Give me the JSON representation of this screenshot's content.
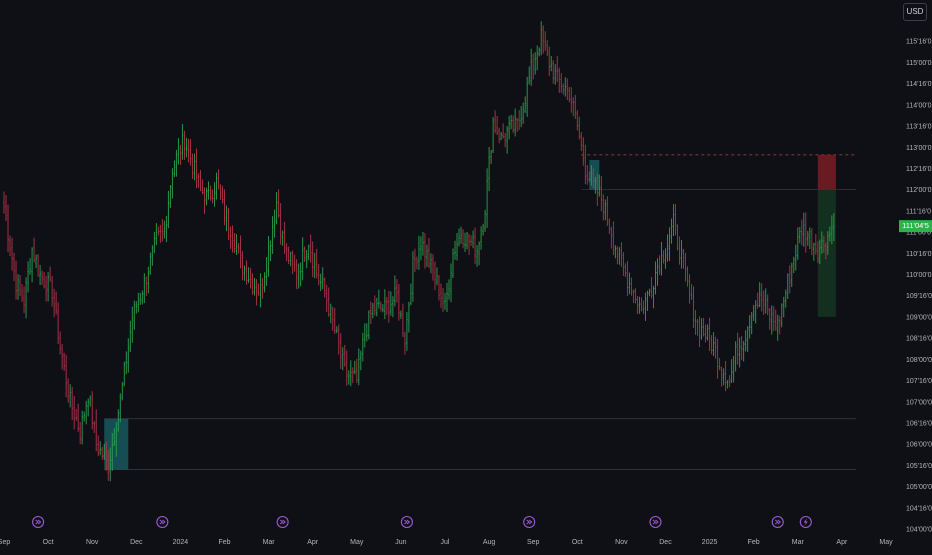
{
  "currency": "USD",
  "last_price_label": "111'04'5",
  "colors": {
    "background": "#0f1015",
    "up": "#26a69a",
    "up_wick": "#2aa34f",
    "down": "#ef5350",
    "down_wick": "#b2354a",
    "axis_text": "#b2b5be",
    "last_price": "#2db34a",
    "event_icon": "#9c5bd6",
    "zone_teal": "#1e7f86",
    "zone_red": "#7a1d24",
    "zone_green": "#143320"
  },
  "chart_data": {
    "type": "bar",
    "style": "ohlc-bars",
    "title": "",
    "xlabel": "",
    "ylabel": "",
    "ylim": [
      104.0,
      116.0
    ],
    "grid": false,
    "y_tick_labels": [
      "115'16'0",
      "115'00'0",
      "114'16'0",
      "114'00'0",
      "113'16'0",
      "113'00'0",
      "112'16'0",
      "112'00'0",
      "111'16'0",
      "111'00'0",
      "110'16'0",
      "110'00'0",
      "109'16'0",
      "109'00'0",
      "108'16'0",
      "108'00'0",
      "107'16'0",
      "107'00'0",
      "106'16'0",
      "106'00'0",
      "105'16'0",
      "105'00'0",
      "104'16'0",
      "104'00'0"
    ],
    "y_tick_values": [
      115.5,
      115.0,
      114.5,
      114.0,
      113.5,
      113.0,
      112.5,
      112.0,
      111.5,
      111.0,
      110.5,
      110.0,
      109.5,
      109.0,
      108.5,
      108.0,
      107.5,
      107.0,
      106.5,
      106.0,
      105.5,
      105.0,
      104.5,
      104.0
    ],
    "x_tick_labels": [
      "Sep",
      "Oct",
      "Nov",
      "Dec",
      "2024",
      "Feb",
      "Mar",
      "Apr",
      "May",
      "Jun",
      "Jul",
      "Aug",
      "Sep",
      "Oct",
      "Nov",
      "Dec",
      "2025",
      "Feb",
      "Mar",
      "Apr",
      "May"
    ],
    "x_tick_index": [
      0,
      22,
      44,
      66,
      88,
      110,
      132,
      154,
      176,
      198,
      220,
      242,
      264,
      286,
      308,
      330,
      352,
      374,
      396,
      418,
      440
    ],
    "x_range": [
      -2,
      444
    ],
    "anchors": [
      [
        0,
        111.6
      ],
      [
        6,
        109.8
      ],
      [
        10,
        109.4
      ],
      [
        14,
        110.6
      ],
      [
        18,
        110.0
      ],
      [
        24,
        109.6
      ],
      [
        28,
        108.3
      ],
      [
        33,
        107.0
      ],
      [
        38,
        106.3
      ],
      [
        42,
        107.2
      ],
      [
        46,
        106.0
      ],
      [
        52,
        105.5
      ],
      [
        58,
        107.0
      ],
      [
        64,
        109.0
      ],
      [
        70,
        109.8
      ],
      [
        76,
        110.8
      ],
      [
        80,
        111.0
      ],
      [
        84,
        112.5
      ],
      [
        90,
        113.2
      ],
      [
        94,
        112.6
      ],
      [
        98,
        112.0
      ],
      [
        102,
        111.8
      ],
      [
        106,
        112.2
      ],
      [
        110,
        111.4
      ],
      [
        114,
        111.0
      ],
      [
        118,
        110.3
      ],
      [
        124,
        109.8
      ],
      [
        128,
        109.6
      ],
      [
        132,
        110.6
      ],
      [
        136,
        111.7
      ],
      [
        140,
        110.6
      ],
      [
        146,
        110.0
      ],
      [
        152,
        110.8
      ],
      [
        156,
        110.0
      ],
      [
        160,
        109.6
      ],
      [
        166,
        108.5
      ],
      [
        170,
        107.7
      ],
      [
        176,
        107.5
      ],
      [
        180,
        108.6
      ],
      [
        184,
        109.2
      ],
      [
        190,
        109.2
      ],
      [
        196,
        109.5
      ],
      [
        200,
        108.5
      ],
      [
        204,
        110.2
      ],
      [
        208,
        110.8
      ],
      [
        212,
        110.3
      ],
      [
        216,
        109.8
      ],
      [
        220,
        109.2
      ],
      [
        224,
        110.5
      ],
      [
        228,
        111.0
      ],
      [
        232,
        110.8
      ],
      [
        236,
        110.6
      ],
      [
        240,
        111.6
      ],
      [
        244,
        113.6
      ],
      [
        248,
        113.2
      ],
      [
        252,
        113.4
      ],
      [
        256,
        113.5
      ],
      [
        260,
        114.2
      ],
      [
        264,
        115.0
      ],
      [
        268,
        115.6
      ],
      [
        272,
        115.0
      ],
      [
        276,
        114.6
      ],
      [
        282,
        114.3
      ],
      [
        286,
        113.5
      ],
      [
        290,
        112.5
      ],
      [
        294,
        112.1
      ],
      [
        298,
        111.8
      ],
      [
        302,
        111.2
      ],
      [
        306,
        110.5
      ],
      [
        310,
        110.0
      ],
      [
        314,
        109.6
      ],
      [
        318,
        109.2
      ],
      [
        322,
        109.6
      ],
      [
        326,
        110.2
      ],
      [
        330,
        110.6
      ],
      [
        334,
        111.2
      ],
      [
        338,
        110.4
      ],
      [
        342,
        109.5
      ],
      [
        346,
        108.8
      ],
      [
        350,
        108.6
      ],
      [
        354,
        108.3
      ],
      [
        358,
        107.8
      ],
      [
        362,
        107.5
      ],
      [
        366,
        108.3
      ],
      [
        370,
        108.6
      ],
      [
        374,
        109.3
      ],
      [
        378,
        109.4
      ],
      [
        382,
        109.0
      ],
      [
        386,
        108.8
      ],
      [
        390,
        109.6
      ],
      [
        394,
        110.4
      ],
      [
        398,
        111.1
      ],
      [
        402,
        110.9
      ],
      [
        406,
        110.6
      ],
      [
        410,
        110.8
      ],
      [
        414,
        111.2
      ]
    ],
    "last_price": 111.14,
    "annotations": [
      {
        "type": "rect",
        "x0": 50,
        "x1": 62,
        "y0": 105.4,
        "y1": 106.6,
        "style": "teal"
      },
      {
        "type": "line",
        "x0": 50,
        "x1": 425,
        "y": 106.6,
        "style": "hline"
      },
      {
        "type": "line",
        "x0": 50,
        "x1": 425,
        "y": 105.4,
        "style": "hline"
      },
      {
        "type": "rect",
        "x0": 292,
        "x1": 297,
        "y0": 112.0,
        "y1": 112.7,
        "style": "teal"
      },
      {
        "type": "line",
        "x0": 288,
        "x1": 425,
        "y": 112.0,
        "style": "hline"
      },
      {
        "type": "line",
        "x0": 288,
        "x1": 425,
        "y": 112.82,
        "style": "dashed-red"
      },
      {
        "type": "rect",
        "x0": 406,
        "x1": 415,
        "y0": 112.0,
        "y1": 112.82,
        "style": "red"
      },
      {
        "type": "rect",
        "x0": 406,
        "x1": 415,
        "y0": 109.0,
        "y1": 112.0,
        "style": "green"
      }
    ],
    "events": [
      {
        "x": 17,
        "icon": "dividend-icon"
      },
      {
        "x": 79,
        "icon": "dividend-icon"
      },
      {
        "x": 139,
        "icon": "dividend-icon"
      },
      {
        "x": 201,
        "icon": "dividend-icon"
      },
      {
        "x": 262,
        "icon": "dividend-icon"
      },
      {
        "x": 325,
        "icon": "dividend-icon"
      },
      {
        "x": 386,
        "icon": "dividend-icon"
      },
      {
        "x": 400,
        "icon": "lightning-icon"
      }
    ]
  }
}
